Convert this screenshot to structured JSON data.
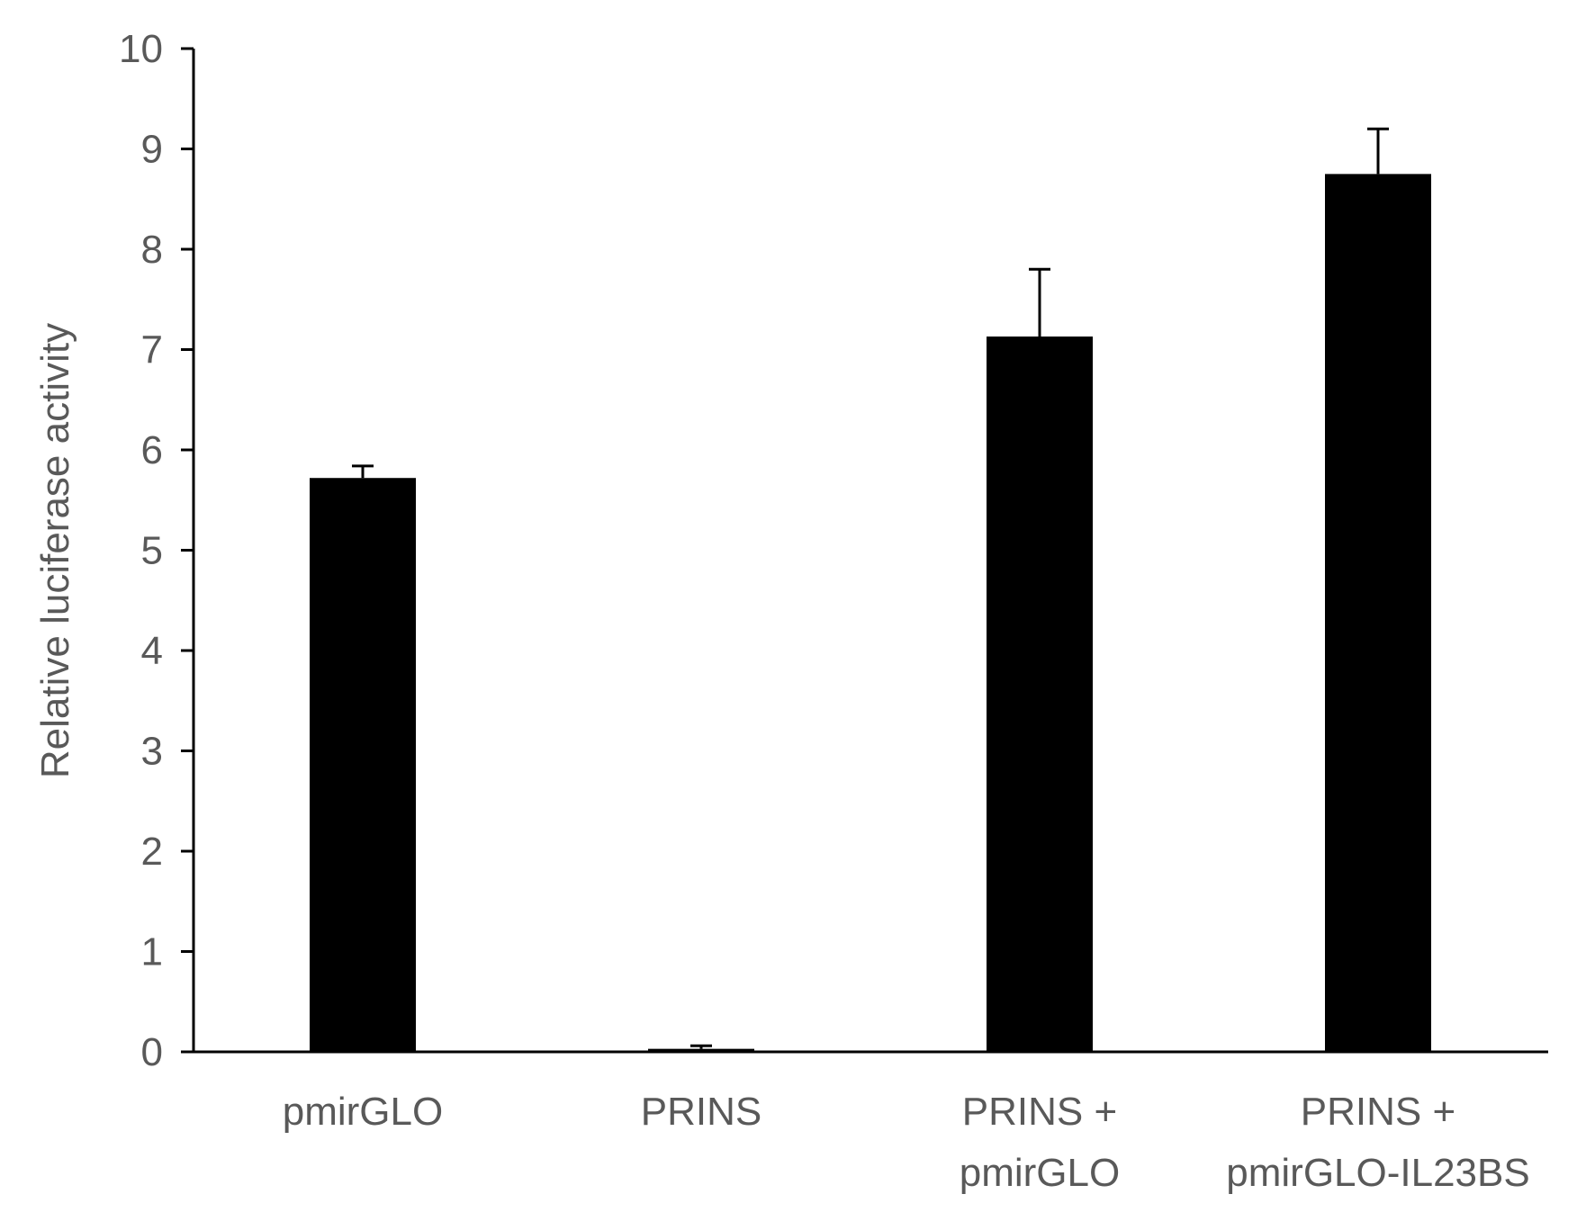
{
  "chart_data": {
    "type": "bar",
    "title": "",
    "xlabel": "",
    "ylabel": "Relative luciferase activity",
    "ylim": [
      0,
      10
    ],
    "yticks": [
      0,
      1,
      2,
      3,
      4,
      5,
      6,
      7,
      8,
      9,
      10
    ],
    "categories": [
      [
        "pmirGLO"
      ],
      [
        "PRINS"
      ],
      [
        "PRINS +",
        "pmirGLO"
      ],
      [
        "PRINS +",
        "pmirGLO-IL23BS"
      ]
    ],
    "values": [
      5.72,
      0.03,
      7.13,
      8.75
    ],
    "error_upper": [
      0.12,
      0.03,
      0.67,
      0.45
    ],
    "bar_color": "#000000",
    "axis_color": "#000000",
    "text_color": "#595959",
    "grid": false,
    "legend": "none"
  }
}
